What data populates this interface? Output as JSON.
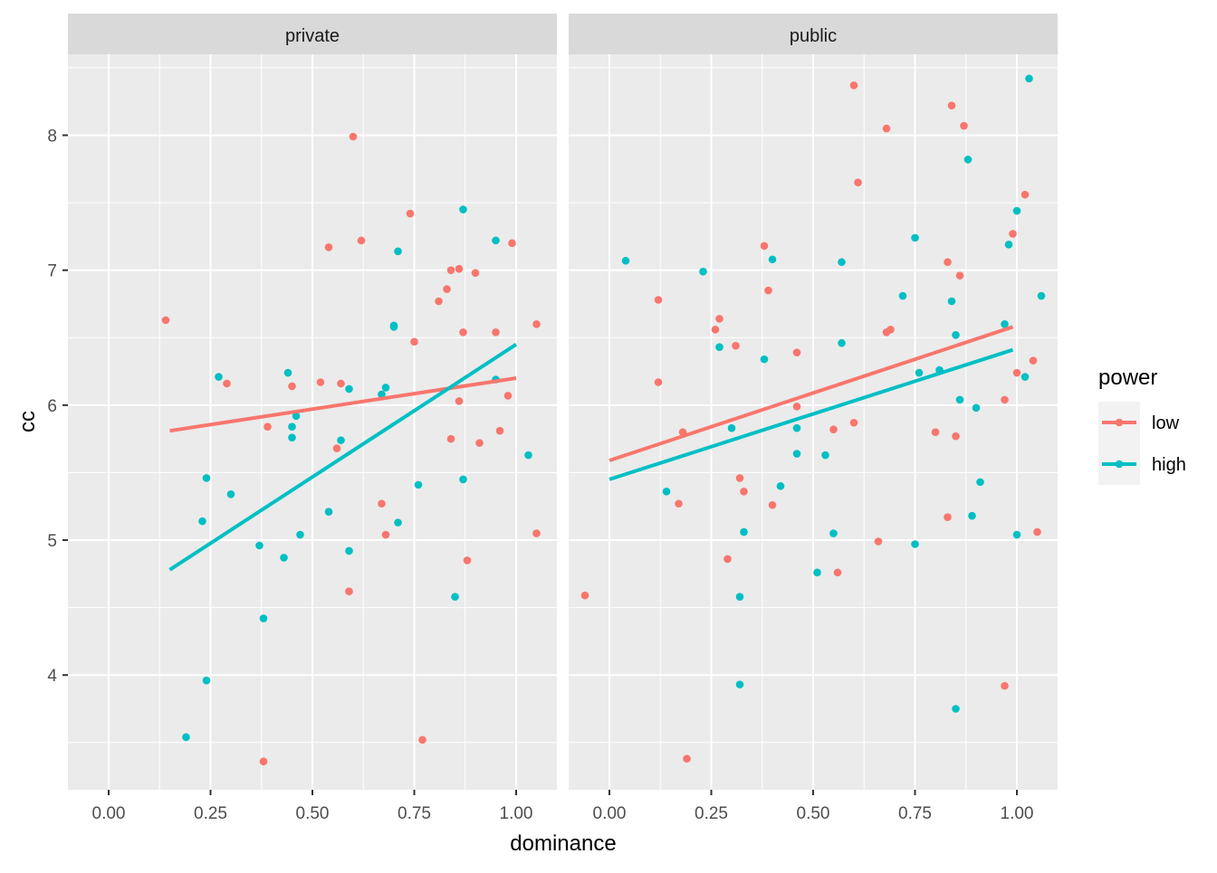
{
  "chart_data": {
    "type": "scatter",
    "xlabel": "dominance",
    "ylabel": "cc",
    "xlim": [
      -0.1,
      1.1
    ],
    "ylim": [
      3.15,
      8.6
    ],
    "x_ticks": [
      "0.00",
      "0.25",
      "0.50",
      "0.75",
      "1.00"
    ],
    "y_ticks": [
      "4",
      "5",
      "6",
      "7",
      "8"
    ],
    "grid": true,
    "legend": {
      "title": "power",
      "placement": "right",
      "entries": [
        {
          "label": "low",
          "color": "#F8766D"
        },
        {
          "label": "high",
          "color": "#00BFC4"
        }
      ]
    },
    "panels": [
      {
        "name": "private",
        "series": [
          {
            "name": "low",
            "color": "#F8766D",
            "points": [
              [
                0.14,
                6.63
              ],
              [
                0.29,
                6.16
              ],
              [
                0.39,
                5.84
              ],
              [
                0.38,
                3.36
              ],
              [
                0.45,
                6.14
              ],
              [
                0.52,
                6.17
              ],
              [
                0.54,
                7.17
              ],
              [
                0.56,
                5.68
              ],
              [
                0.57,
                6.16
              ],
              [
                0.59,
                4.62
              ],
              [
                0.6,
                7.99
              ],
              [
                0.62,
                7.22
              ],
              [
                0.67,
                5.27
              ],
              [
                0.68,
                5.04
              ],
              [
                0.74,
                7.42
              ],
              [
                0.75,
                6.47
              ],
              [
                0.77,
                3.52
              ],
              [
                0.81,
                6.77
              ],
              [
                0.83,
                6.86
              ],
              [
                0.84,
                7.0
              ],
              [
                0.86,
                7.01
              ],
              [
                0.84,
                5.75
              ],
              [
                0.86,
                6.03
              ],
              [
                0.87,
                6.54
              ],
              [
                0.88,
                4.85
              ],
              [
                0.9,
                6.98
              ],
              [
                0.91,
                5.72
              ],
              [
                0.95,
                6.54
              ],
              [
                0.96,
                5.81
              ],
              [
                0.98,
                6.07
              ],
              [
                0.99,
                7.2
              ],
              [
                1.05,
                6.6
              ],
              [
                1.05,
                5.05
              ]
            ],
            "fit": {
              "x": [
                0.15,
                1.0
              ],
              "y": [
                5.81,
                6.2
              ]
            }
          },
          {
            "name": "high",
            "color": "#00BFC4",
            "points": [
              [
                0.19,
                3.54
              ],
              [
                0.23,
                5.14
              ],
              [
                0.24,
                5.46
              ],
              [
                0.24,
                3.96
              ],
              [
                0.27,
                6.21
              ],
              [
                0.3,
                5.34
              ],
              [
                0.37,
                4.96
              ],
              [
                0.38,
                4.42
              ],
              [
                0.43,
                4.87
              ],
              [
                0.44,
                6.24
              ],
              [
                0.45,
                5.84
              ],
              [
                0.45,
                5.76
              ],
              [
                0.46,
                5.92
              ],
              [
                0.47,
                5.04
              ],
              [
                0.54,
                5.21
              ],
              [
                0.57,
                5.74
              ],
              [
                0.59,
                4.92
              ],
              [
                0.59,
                6.12
              ],
              [
                0.67,
                6.08
              ],
              [
                0.68,
                6.13
              ],
              [
                0.7,
                6.58
              ],
              [
                0.7,
                6.59
              ],
              [
                0.71,
                7.14
              ],
              [
                0.71,
                5.13
              ],
              [
                0.76,
                5.41
              ],
              [
                0.85,
                4.58
              ],
              [
                0.87,
                7.45
              ],
              [
                0.87,
                5.45
              ],
              [
                0.95,
                7.22
              ],
              [
                0.95,
                6.19
              ],
              [
                1.03,
                5.63
              ]
            ],
            "fit": {
              "x": [
                0.15,
                1.0
              ],
              "y": [
                4.78,
                6.45
              ]
            }
          }
        ]
      },
      {
        "name": "public",
        "series": [
          {
            "name": "low",
            "color": "#F8766D",
            "points": [
              [
                -0.06,
                4.59
              ],
              [
                0.12,
                6.78
              ],
              [
                0.12,
                6.17
              ],
              [
                0.17,
                5.27
              ],
              [
                0.18,
                5.8
              ],
              [
                0.19,
                3.38
              ],
              [
                0.26,
                6.56
              ],
              [
                0.27,
                6.64
              ],
              [
                0.29,
                4.86
              ],
              [
                0.31,
                6.44
              ],
              [
                0.32,
                5.46
              ],
              [
                0.33,
                5.36
              ],
              [
                0.38,
                7.18
              ],
              [
                0.39,
                6.85
              ],
              [
                0.4,
                5.26
              ],
              [
                0.46,
                6.39
              ],
              [
                0.46,
                5.99
              ],
              [
                0.55,
                5.82
              ],
              [
                0.56,
                4.76
              ],
              [
                0.6,
                5.87
              ],
              [
                0.6,
                8.37
              ],
              [
                0.61,
                7.65
              ],
              [
                0.66,
                4.99
              ],
              [
                0.68,
                8.05
              ],
              [
                0.68,
                6.54
              ],
              [
                0.69,
                6.56
              ],
              [
                0.8,
                5.8
              ],
              [
                0.83,
                7.06
              ],
              [
                0.83,
                5.17
              ],
              [
                0.84,
                8.22
              ],
              [
                0.85,
                5.77
              ],
              [
                0.86,
                6.96
              ],
              [
                0.87,
                8.07
              ],
              [
                0.97,
                3.92
              ],
              [
                0.97,
                6.04
              ],
              [
                0.99,
                7.27
              ],
              [
                1.0,
                6.24
              ],
              [
                1.02,
                7.56
              ],
              [
                1.04,
                6.33
              ],
              [
                1.05,
                5.06
              ]
            ],
            "fit": {
              "x": [
                0.0,
                0.99
              ],
              "y": [
                5.59,
                6.58
              ]
            }
          },
          {
            "name": "high",
            "color": "#00BFC4",
            "points": [
              [
                0.04,
                7.07
              ],
              [
                0.14,
                5.36
              ],
              [
                0.23,
                6.99
              ],
              [
                0.27,
                6.43
              ],
              [
                0.3,
                5.83
              ],
              [
                0.32,
                4.58
              ],
              [
                0.32,
                3.93
              ],
              [
                0.33,
                5.06
              ],
              [
                0.38,
                6.34
              ],
              [
                0.4,
                7.08
              ],
              [
                0.42,
                5.4
              ],
              [
                0.46,
                5.64
              ],
              [
                0.46,
                5.83
              ],
              [
                0.51,
                4.76
              ],
              [
                0.53,
                5.63
              ],
              [
                0.55,
                5.05
              ],
              [
                0.57,
                7.06
              ],
              [
                0.57,
                6.46
              ],
              [
                0.72,
                6.81
              ],
              [
                0.75,
                7.24
              ],
              [
                0.75,
                4.97
              ],
              [
                0.76,
                6.24
              ],
              [
                0.81,
                6.26
              ],
              [
                0.84,
                6.77
              ],
              [
                0.85,
                6.52
              ],
              [
                0.85,
                3.75
              ],
              [
                0.86,
                6.04
              ],
              [
                0.88,
                7.82
              ],
              [
                0.89,
                5.18
              ],
              [
                0.9,
                5.98
              ],
              [
                0.91,
                5.43
              ],
              [
                0.97,
                6.6
              ],
              [
                0.98,
                7.19
              ],
              [
                1.0,
                7.44
              ],
              [
                1.0,
                5.04
              ],
              [
                1.02,
                6.21
              ],
              [
                1.03,
                8.42
              ],
              [
                1.06,
                6.81
              ]
            ],
            "fit": {
              "x": [
                0.0,
                0.99
              ],
              "y": [
                5.45,
                6.41
              ]
            }
          }
        ]
      }
    ]
  }
}
